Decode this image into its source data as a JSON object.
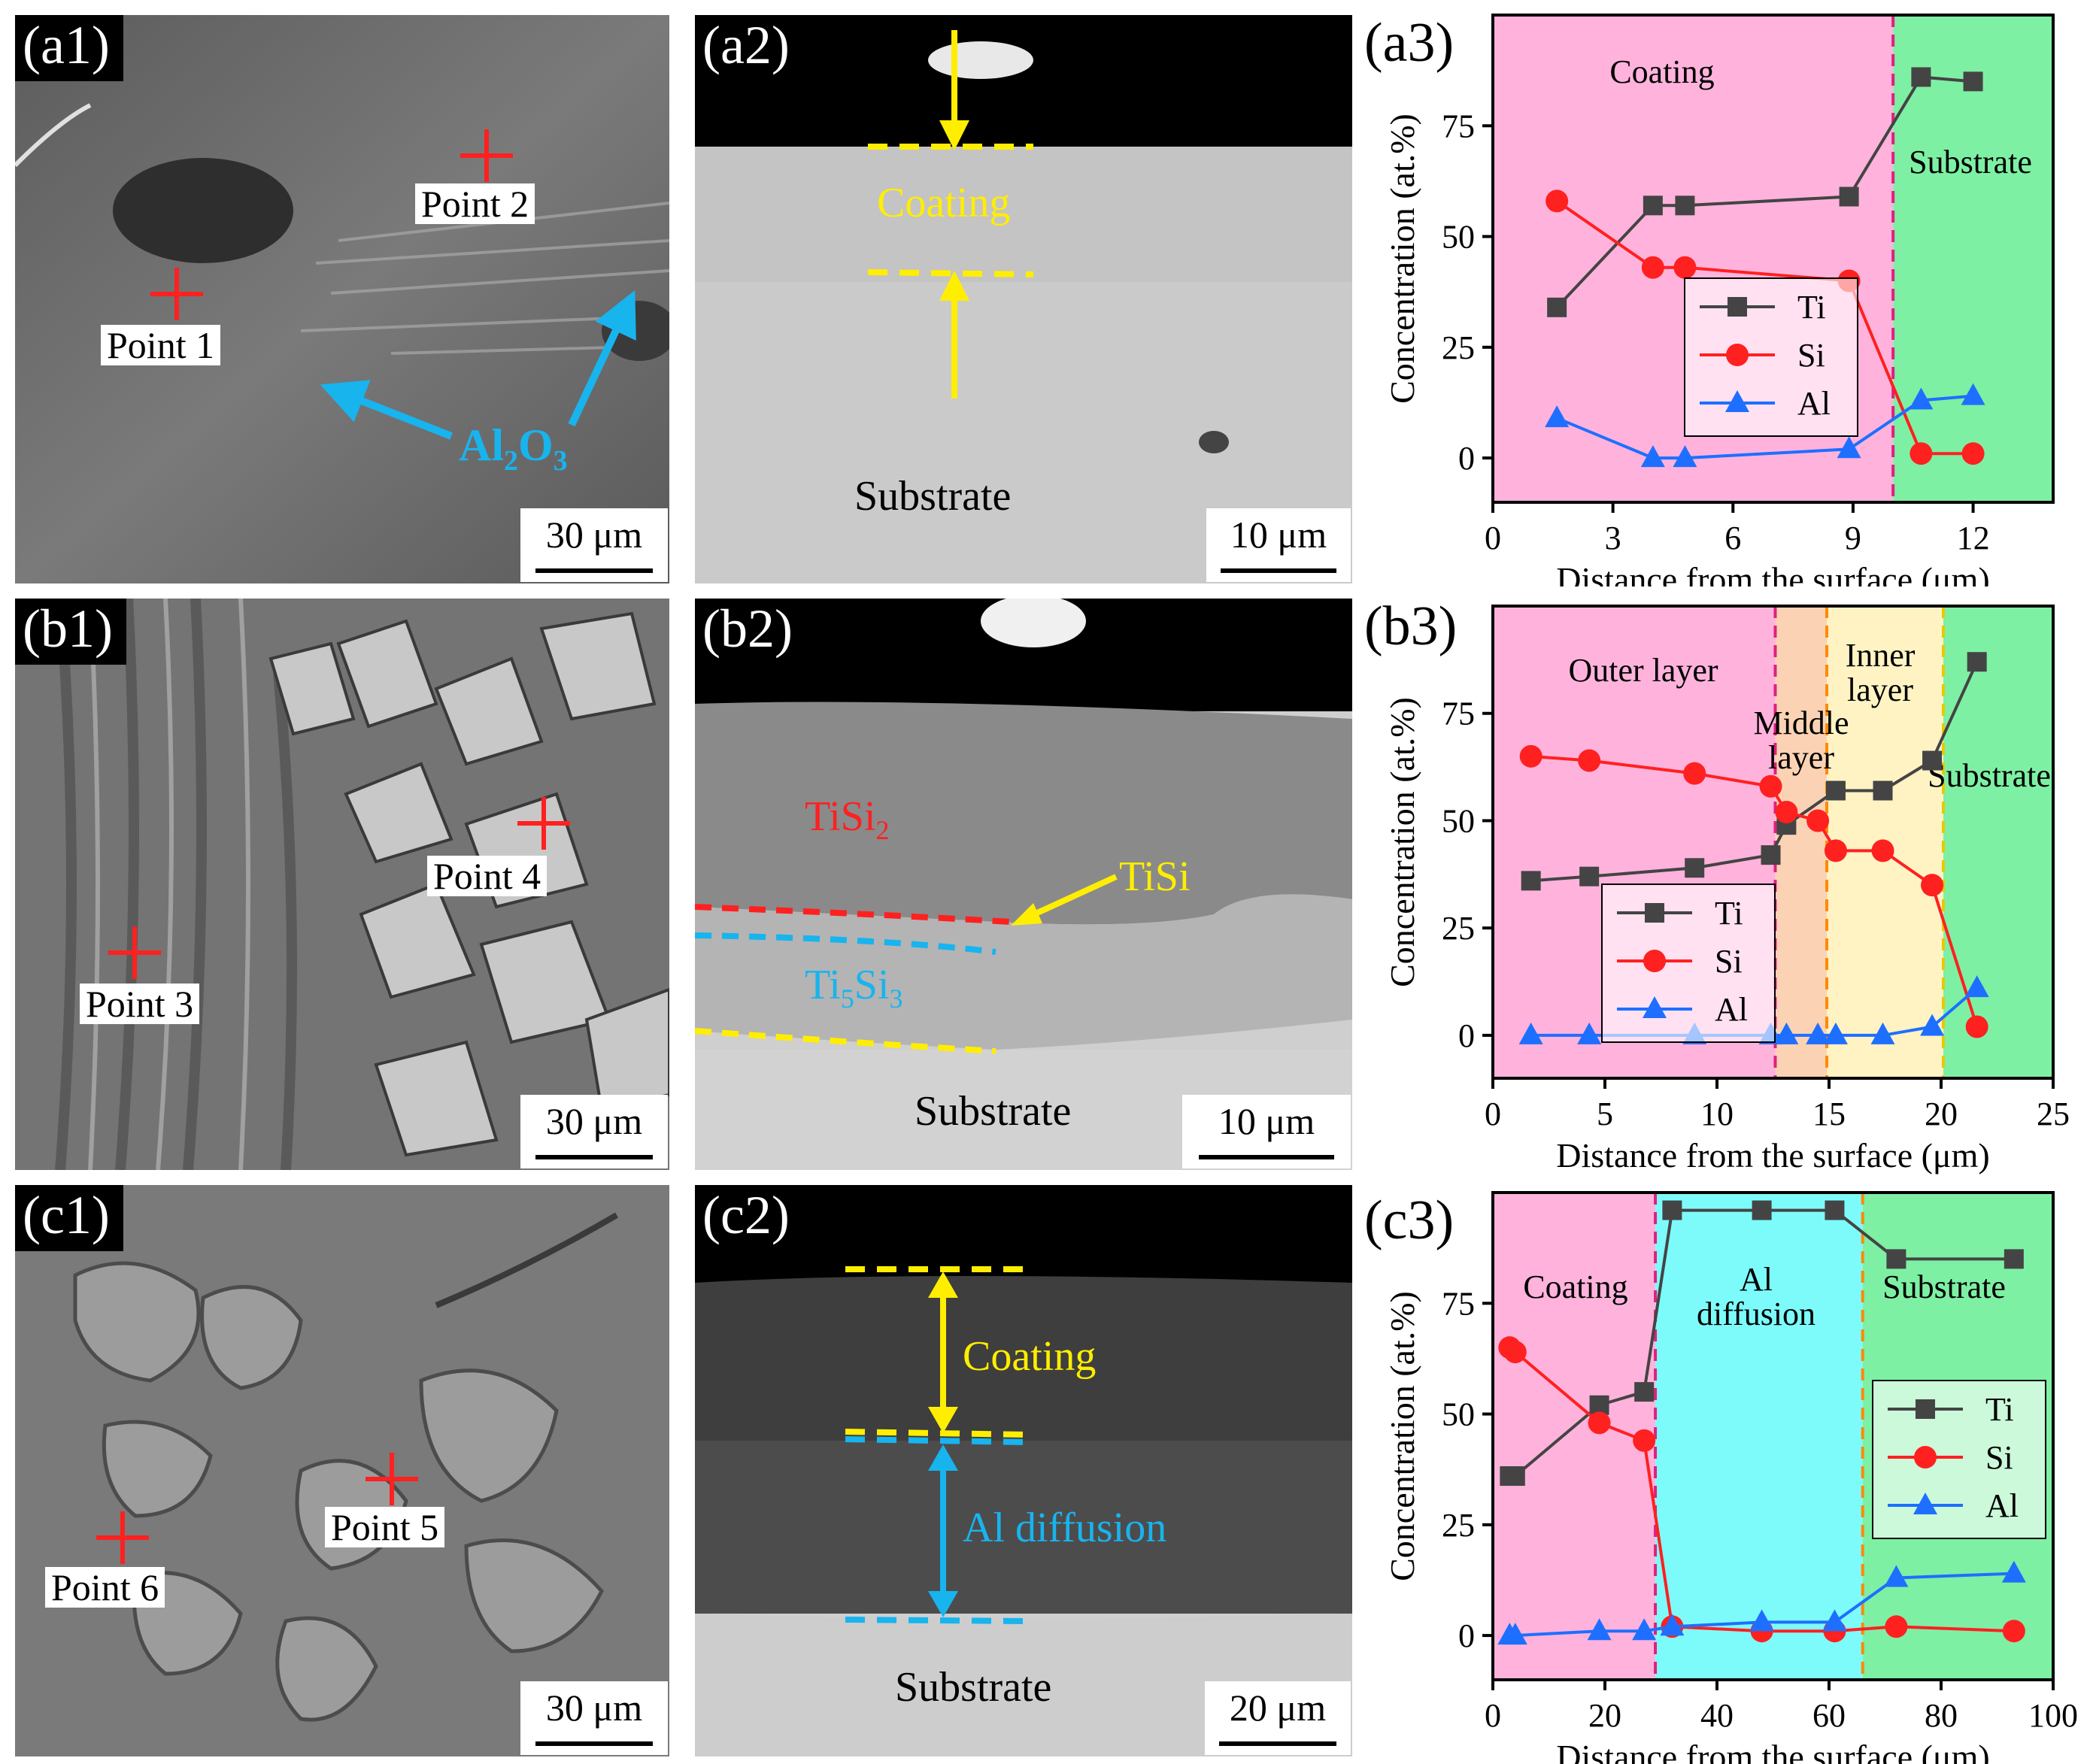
{
  "colors": {
    "ti": "#444444",
    "si": "#ff2020",
    "al": "#1e6fff",
    "coating_zone": "#ffb3dc",
    "substrate_zone": "#7ef0a4",
    "middle_zone": "#fbd3b4",
    "inner_zone": "#fff3c4",
    "al_diffusion_zone": "#7dfbfb",
    "yellow_annotation": "#ffee00",
    "cyan_annotation": "#18b4ee",
    "red_annotation": "#ff2020"
  },
  "rows": [
    {
      "sem_tag": "(a1)",
      "sem_points": [
        "Point 2",
        "Point 1"
      ],
      "sem_phase_main": "Al",
      "sem_phase_sub1": "2",
      "sem_phase_mid": "O",
      "sem_phase_sub2": "3",
      "sem_scale": "30 μm",
      "cross_tag": "(a2)",
      "cross_labels": [
        "Coating",
        "Substrate"
      ],
      "cross_scale": "10 μm",
      "plot_tag": "(a3)"
    },
    {
      "sem_tag": "(b1)",
      "sem_points": [
        "Point 4",
        "Point 3"
      ],
      "sem_scale": "30 μm",
      "cross_tag": "(b2)",
      "cross_tisi2_main": "TiSi",
      "cross_tisi2_sub": "2",
      "cross_tisi": "TiSi",
      "cross_ti5si3_a": "Ti",
      "cross_ti5si3_b": "5",
      "cross_ti5si3_c": "Si",
      "cross_ti5si3_d": "3",
      "cross_substrate": "Substrate",
      "cross_scale": "10 μm",
      "plot_tag": "(b3)"
    },
    {
      "sem_tag": "(c1)",
      "sem_points": [
        "Point 5",
        "Point 6"
      ],
      "sem_scale": "30 μm",
      "cross_tag": "(c2)",
      "cross_labels": [
        "Coating",
        "Al diffusion",
        "Substrate"
      ],
      "cross_scale": "20 μm",
      "plot_tag": "(c3)"
    }
  ],
  "chart_data": [
    {
      "type": "line",
      "panel": "(a3)",
      "xlabel": "Distance from the surface (μm)",
      "ylabel": "Concentration (at.%)",
      "xlim": [
        0,
        14
      ],
      "ylim": [
        -10,
        100
      ],
      "xticks": [
        0,
        3,
        6,
        9,
        12
      ],
      "yticks": [
        0,
        25,
        50,
        75
      ],
      "zones": [
        {
          "from": 0,
          "to": 10,
          "color": "coating_zone",
          "label": "Coating"
        },
        {
          "from": 10,
          "to": 14,
          "color": "substrate_zone",
          "label": "Substrate"
        }
      ],
      "boundaries": [
        {
          "x": 10,
          "color": "#e0207e"
        }
      ],
      "legend_position": "center",
      "series": [
        {
          "name": "Ti",
          "marker": "square",
          "x": [
            1.6,
            4.0,
            4.8,
            8.9,
            10.7,
            12.0
          ],
          "y": [
            34,
            57,
            57,
            59,
            86,
            85
          ]
        },
        {
          "name": "Si",
          "marker": "circle",
          "x": [
            1.6,
            4.0,
            4.8,
            8.9,
            10.7,
            12.0
          ],
          "y": [
            58,
            43,
            43,
            40,
            1,
            1
          ]
        },
        {
          "name": "Al",
          "marker": "triangle",
          "x": [
            1.6,
            4.0,
            4.8,
            8.9,
            10.7,
            12.0
          ],
          "y": [
            9,
            0,
            0,
            2,
            13,
            14
          ]
        }
      ]
    },
    {
      "type": "line",
      "panel": "(b3)",
      "xlabel": "Distance from the surface (μm)",
      "ylabel": "Concentration (at.%)",
      "xlim": [
        0,
        25
      ],
      "ylim": [
        -10,
        100
      ],
      "xticks": [
        0,
        5,
        10,
        15,
        20,
        25
      ],
      "yticks": [
        0,
        25,
        50,
        75
      ],
      "zones": [
        {
          "from": 0,
          "to": 12.6,
          "color": "coating_zone",
          "label": "Outer layer"
        },
        {
          "from": 12.6,
          "to": 14.9,
          "color": "middle_zone",
          "label": "Middle\nlayer"
        },
        {
          "from": 14.9,
          "to": 20.1,
          "color": "inner_zone",
          "label": "Inner\nlayer"
        },
        {
          "from": 20.1,
          "to": 25,
          "color": "substrate_zone",
          "label": "Substrate"
        }
      ],
      "boundaries": [
        {
          "x": 12.6,
          "color": "#e0207e"
        },
        {
          "x": 14.9,
          "color": "#ff8a00"
        },
        {
          "x": 20.1,
          "color": "#e8c800"
        }
      ],
      "legend_position": "lower-left",
      "series": [
        {
          "name": "Ti",
          "marker": "square",
          "x": [
            1.7,
            4.3,
            9.0,
            12.4,
            13.1,
            15.3,
            17.4,
            19.6,
            21.6
          ],
          "y": [
            36,
            37,
            39,
            42,
            49,
            57,
            57,
            64,
            87
          ]
        },
        {
          "name": "Si",
          "marker": "circle",
          "x": [
            1.7,
            4.3,
            9.0,
            12.4,
            13.1,
            14.5,
            15.3,
            17.4,
            19.6,
            21.6
          ],
          "y": [
            65,
            64,
            61,
            58,
            52,
            50,
            43,
            43,
            35,
            2
          ]
        },
        {
          "name": "Al",
          "marker": "triangle",
          "x": [
            1.7,
            4.3,
            9.0,
            12.4,
            13.1,
            14.5,
            15.3,
            17.4,
            19.6,
            21.6
          ],
          "y": [
            0,
            0,
            0,
            0,
            0,
            0,
            0,
            0,
            2,
            11
          ]
        }
      ]
    },
    {
      "type": "line",
      "panel": "(c3)",
      "xlabel": "Distance from the surface (μm)",
      "ylabel": "Concentration (at.%)",
      "xlim": [
        0,
        100
      ],
      "ylim": [
        -10,
        100
      ],
      "xticks": [
        0,
        20,
        40,
        60,
        80,
        100
      ],
      "yticks": [
        0,
        25,
        50,
        75
      ],
      "zones": [
        {
          "from": 0,
          "to": 29,
          "color": "coating_zone",
          "label": "Coating"
        },
        {
          "from": 29,
          "to": 66,
          "color": "al_diffusion_zone",
          "label": "Al\ndiffusion"
        },
        {
          "from": 66,
          "to": 100,
          "color": "substrate_zone",
          "label": "Substrate"
        }
      ],
      "boundaries": [
        {
          "x": 29,
          "color": "#e0207e"
        },
        {
          "x": 66,
          "color": "#ff8a00"
        }
      ],
      "legend_position": "right",
      "series": [
        {
          "name": "Ti",
          "marker": "square",
          "x": [
            3,
            4,
            19,
            27,
            32,
            48,
            61,
            72,
            93
          ],
          "y": [
            36,
            36,
            52,
            55,
            96,
            96,
            96,
            85,
            85
          ]
        },
        {
          "name": "Si",
          "marker": "circle",
          "x": [
            3,
            4,
            19,
            27,
            32,
            48,
            61,
            72,
            93
          ],
          "y": [
            65,
            64,
            48,
            44,
            2,
            1,
            1,
            2,
            1
          ]
        },
        {
          "name": "Al",
          "marker": "triangle",
          "x": [
            3,
            4,
            19,
            27,
            32,
            48,
            61,
            72,
            93
          ],
          "y": [
            0,
            0,
            1,
            1,
            2,
            3,
            3,
            13,
            14
          ]
        }
      ]
    }
  ]
}
